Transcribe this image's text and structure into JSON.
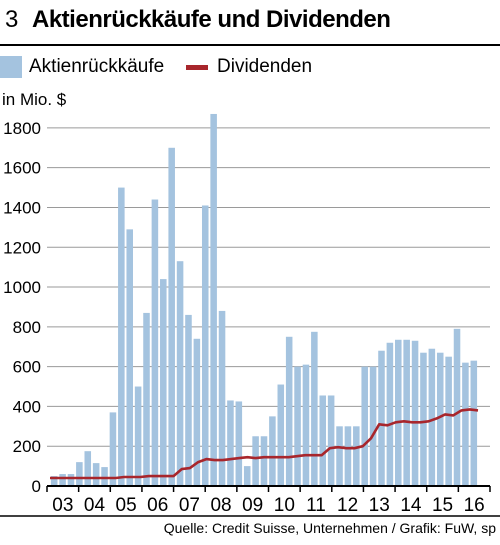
{
  "header": {
    "number": "3",
    "title": "Aktienrückkäufe und Dividenden"
  },
  "legend": {
    "bars_label": "Aktienrückkäufe",
    "line_label": "Dividenden"
  },
  "colors": {
    "bars": "#a4c3df",
    "line": "#a8262c",
    "grid": "#9a9a9a",
    "axis": "#000000"
  },
  "source": "Quelle: Credit Suisse, Unternehmen / Grafik: FuW, sp",
  "chart_data": {
    "type": "bar",
    "title": "Aktienrückkäufe und Dividenden",
    "ylabel": "in Mio. $",
    "ylim": [
      0,
      1900
    ],
    "yticks": [
      0,
      200,
      400,
      600,
      800,
      1000,
      1200,
      1400,
      1600,
      1800
    ],
    "year_labels": [
      "03",
      "04",
      "05",
      "06",
      "07",
      "08",
      "09",
      "10",
      "11",
      "12",
      "13",
      "14",
      "15",
      "16"
    ],
    "grid": true,
    "legend_position": "top",
    "series": [
      {
        "name": "Aktienrückkäufe",
        "kind": "bar",
        "values": [
          50,
          60,
          60,
          120,
          175,
          115,
          95,
          370,
          1500,
          1290,
          500,
          870,
          1440,
          1040,
          1700,
          1130,
          860,
          740,
          1410,
          1870,
          880,
          430,
          425,
          100,
          250,
          250,
          350,
          510,
          750,
          600,
          610,
          775,
          455,
          455,
          300,
          300,
          300,
          600,
          600,
          680,
          720,
          735,
          735,
          730,
          670,
          690,
          670,
          650,
          790,
          620,
          630
        ]
      },
      {
        "name": "Dividenden",
        "kind": "line",
        "values": [
          40,
          40,
          40,
          40,
          40,
          40,
          40,
          40,
          40,
          45,
          45,
          45,
          50,
          50,
          50,
          50,
          85,
          90,
          120,
          135,
          130,
          130,
          135,
          140,
          145,
          140,
          145,
          145,
          145,
          145,
          150,
          155,
          155,
          155,
          190,
          195,
          190,
          190,
          200,
          240,
          310,
          305,
          320,
          325,
          320,
          320,
          325,
          340,
          360,
          355,
          380,
          385,
          380
        ]
      }
    ]
  }
}
